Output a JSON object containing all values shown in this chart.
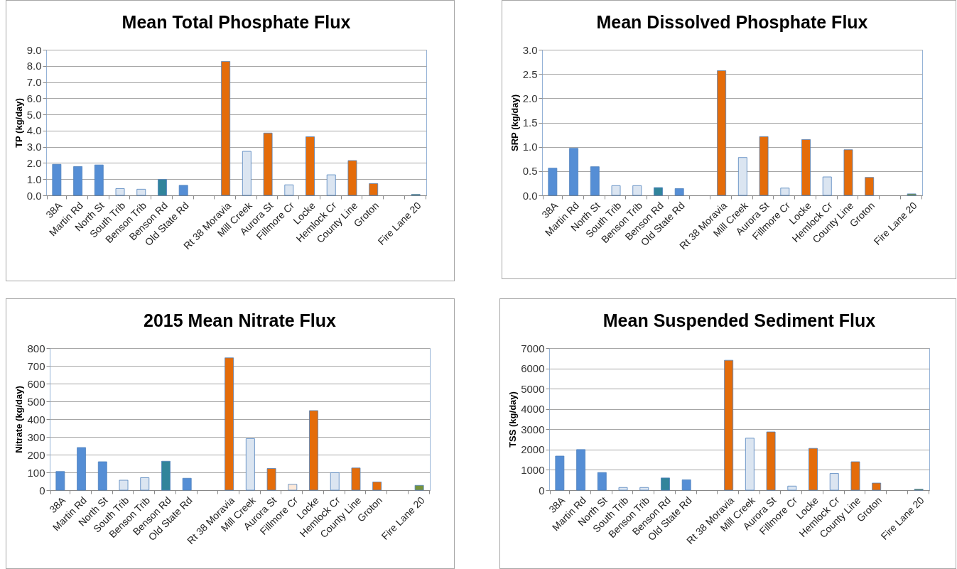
{
  "chart_data": [
    {
      "type": "bar",
      "title": "Mean Total Phosphate Flux",
      "ylabel": "TP (kg/day)",
      "categories": [
        "38A",
        "Martin Rd",
        "North St",
        "South Trib",
        "Benson Trib",
        "Benson Rd",
        "Old State Rd",
        null,
        "Rt 38 Moravia",
        "Mill Creek",
        "Aurora St",
        "Fillmore Cr",
        "Locke",
        "Hemlock Cr",
        "County Line",
        "Groton",
        null,
        "Fire Lane 20"
      ],
      "values": [
        1.92,
        1.78,
        1.88,
        0.42,
        0.38,
        0.98,
        0.62,
        null,
        8.28,
        2.72,
        3.85,
        0.65,
        3.62,
        1.27,
        2.15,
        0.73,
        null,
        0.06
      ],
      "colors": [
        "#558ed5",
        "#558ed5",
        "#558ed5",
        "#dbe5f1",
        "#dbe5f1",
        "#31849b",
        "#558ed5",
        "#558ed5",
        "#e46c0a",
        "#dbe5f1",
        "#e46c0a",
        "#dbe5f1",
        "#e46c0a",
        "#dbe5f1",
        "#e46c0a",
        "#e46c0a",
        "#e46c0a",
        "#77933c"
      ],
      "ylim": [
        0,
        9
      ],
      "yticks": [
        {
          "value": 0,
          "label": "0.0"
        },
        {
          "value": 1,
          "label": "1.0"
        },
        {
          "value": 2,
          "label": "2.0"
        },
        {
          "value": 3,
          "label": "3.0"
        },
        {
          "value": 4,
          "label": "4.0"
        },
        {
          "value": 5,
          "label": "5.0"
        },
        {
          "value": 6,
          "label": "6.0"
        },
        {
          "value": 7,
          "label": "7.0"
        },
        {
          "value": 8,
          "label": "8.0"
        },
        {
          "value": 9,
          "label": "9.0"
        }
      ],
      "grid": "y"
    },
    {
      "type": "bar",
      "title": "Mean Dissolved Phosphate Flux",
      "ylabel": "SRP (kg/day)",
      "categories": [
        "38A",
        "Martin Rd",
        "North St",
        "South Trib",
        "Benson Trib",
        "Benson Rd",
        "Old State Rd",
        null,
        "Rt 38 Moravia",
        "Mill Creek",
        "Aurora St",
        "Fillmore Cr",
        "Locke",
        "Hemlock Cr",
        "County Line",
        "Groton",
        null,
        "Fire Lane 20"
      ],
      "values": [
        0.56,
        0.97,
        0.59,
        0.2,
        0.2,
        0.16,
        0.14,
        null,
        2.57,
        0.78,
        1.21,
        0.15,
        1.15,
        0.38,
        0.94,
        0.37,
        null,
        0.03
      ],
      "colors": [
        "#558ed5",
        "#558ed5",
        "#558ed5",
        "#dbe5f1",
        "#dbe5f1",
        "#31849b",
        "#558ed5",
        "#558ed5",
        "#e46c0a",
        "#dbe5f1",
        "#e46c0a",
        "#dbe5f1",
        "#e46c0a",
        "#dbe5f1",
        "#e46c0a",
        "#e46c0a",
        "#e46c0a",
        "#77933c"
      ],
      "ylim": [
        0,
        3
      ],
      "yticks": [
        {
          "value": 0,
          "label": "0.0"
        },
        0.5,
        {
          "value": 1,
          "label": "1.0"
        },
        1.5,
        {
          "value": 2,
          "label": "2.0"
        },
        2.5,
        {
          "value": 3,
          "label": "3.0"
        }
      ],
      "grid": "y"
    },
    {
      "type": "bar",
      "title": "2015 Mean Nitrate Flux",
      "ylabel": "Nitrate (kg/day)",
      "categories": [
        "38A",
        "Martin Rd",
        "North St",
        "South Trib",
        "Benson Trib",
        "Benson Rd",
        "Old State Rd",
        null,
        "Rt 38 Moravia",
        "Mill Creek",
        "Aurora St",
        "Fillmore Cr",
        "Locke",
        "Hemlock Cr",
        "County Line",
        "Groton",
        null,
        "Fire Lane 20"
      ],
      "values": [
        105,
        240,
        160,
        56,
        70,
        163,
        67,
        null,
        745,
        290,
        122,
        33,
        448,
        98,
        125,
        46,
        null,
        27
      ],
      "colors": [
        "#558ed5",
        "#558ed5",
        "#558ed5",
        "#dbe5f1",
        "#dbe5f1",
        "#31849b",
        "#558ed5",
        "#558ed5",
        "#e46c0a",
        "#dbe5f1",
        "#e46c0a",
        "#fde9d9",
        "#e46c0a",
        "#dbe5f1",
        "#e46c0a",
        "#e46c0a",
        "#e46c0a",
        "#77933c"
      ],
      "ylim": [
        0,
        800
      ],
      "yticks": [
        0,
        100,
        200,
        300,
        400,
        500,
        600,
        700,
        800
      ],
      "grid": "y"
    },
    {
      "type": "bar",
      "title": "Mean Suspended Sediment Flux",
      "ylabel": "TSS (kg/day)",
      "categories": [
        "38A",
        "Martin Rd",
        "North St",
        "South Trib",
        "Benson Trib",
        "Benson Rd",
        "Old State Rd",
        null,
        "Rt 38 Moravia",
        "Mill Creek",
        "Aurora St",
        "Fillmore Cr",
        "Locke",
        "Hemlock Cr",
        "County Line",
        "Groton",
        null,
        "Fire Lane 20"
      ],
      "values": [
        1680,
        2000,
        870,
        130,
        130,
        600,
        510,
        null,
        6400,
        2560,
        2870,
        200,
        2060,
        820,
        1400,
        350,
        null,
        50
      ],
      "colors": [
        "#558ed5",
        "#558ed5",
        "#558ed5",
        "#dbe5f1",
        "#dbe5f1",
        "#31849b",
        "#558ed5",
        "#558ed5",
        "#e46c0a",
        "#dbe5f1",
        "#e46c0a",
        "#dbe5f1",
        "#e46c0a",
        "#dbe5f1",
        "#e46c0a",
        "#e46c0a",
        "#e46c0a",
        "#77933c"
      ],
      "ylim": [
        0,
        7000
      ],
      "yticks": [
        0,
        1000,
        2000,
        3000,
        4000,
        5000,
        6000,
        7000
      ],
      "grid": "y"
    }
  ]
}
